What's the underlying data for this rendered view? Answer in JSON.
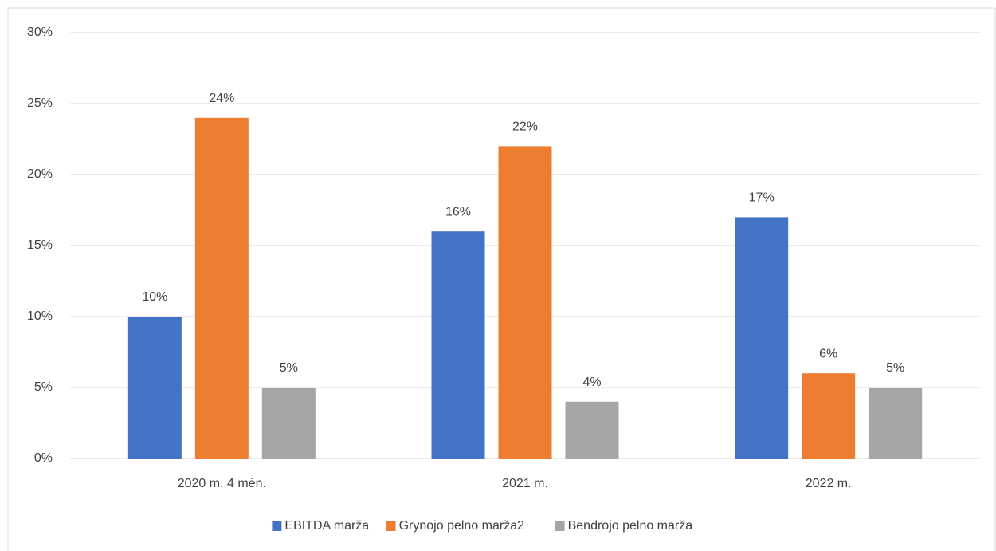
{
  "chart_data": {
    "type": "bar",
    "categories": [
      "2020 m. 4 mėn.",
      "2021 m.",
      "2022 m."
    ],
    "series": [
      {
        "name": "EBITDA marža",
        "color": "#4472c4",
        "values": [
          10,
          16,
          17
        ],
        "value_labels": [
          "10%",
          "16%",
          "17%"
        ]
      },
      {
        "name": "Grynojo pelno marža2",
        "color": "#ed7d31",
        "values": [
          24,
          22,
          6
        ],
        "value_labels": [
          "24%",
          "22%",
          "6%"
        ]
      },
      {
        "name": "Bendrojo pelno marža",
        "color": "#a5a5a5",
        "values": [
          5,
          4,
          5
        ],
        "value_labels": [
          "5%",
          "4%",
          "5%"
        ]
      }
    ],
    "ylim": [
      0,
      30
    ],
    "yticks": [
      {
        "value": 0,
        "label": "0%"
      },
      {
        "value": 5,
        "label": "5%"
      },
      {
        "value": 10,
        "label": "10%"
      },
      {
        "value": 15,
        "label": "15%"
      },
      {
        "value": 20,
        "label": "20%"
      },
      {
        "value": 25,
        "label": "25%"
      },
      {
        "value": 30,
        "label": "30%"
      }
    ],
    "grid": true,
    "legend": "bottom"
  }
}
